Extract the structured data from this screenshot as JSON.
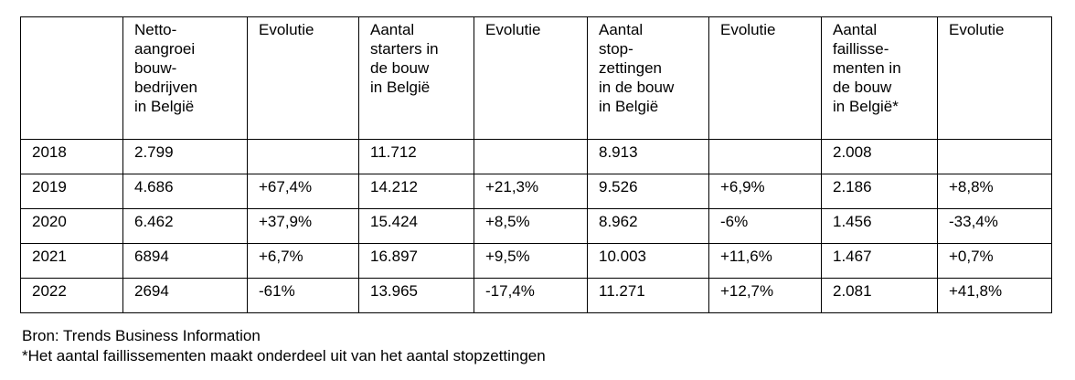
{
  "table": {
    "headers": [
      "Netto-\naangroei\nbouw-\nbedrijven\nin België",
      "Evolutie",
      "Aantal\nstarters in\nde bouw\nin België",
      "Evolutie",
      "Aantal\nstop-\nzettingen\nin de bouw\nin België",
      "Evolutie",
      "Aantal\nfaillisse-\nmenten in\nde bouw\nin België*",
      "Evolutie"
    ],
    "rows": [
      [
        "2018",
        "2.799",
        null,
        "11.712",
        null,
        "8.913",
        null,
        "2.008",
        null
      ],
      [
        "2019",
        "4.686",
        "+67,4%",
        "14.212",
        "+21,3%",
        "9.526",
        "+6,9%",
        "2.186",
        "+8,8%"
      ],
      [
        "2020",
        "6.462",
        "+37,9%",
        "15.424",
        "+8,5%",
        "8.962",
        "-6%",
        "1.456",
        "-33,4%"
      ],
      [
        "2021",
        "6894",
        "+6,7%",
        "16.897",
        "+9,5%",
        "10.003",
        "+11,6%",
        "1.467",
        "+0,7%"
      ],
      [
        "2022",
        "2694",
        "-61%",
        "13.965",
        "-17,4%",
        "11.271",
        "+12,7%",
        "2.081",
        "+41,8%"
      ]
    ]
  },
  "footer": {
    "source": "Bron: Trends Business Information",
    "note": "*Het aantal faillissementen maakt onderdeel uit van het aantal stopzettingen"
  }
}
